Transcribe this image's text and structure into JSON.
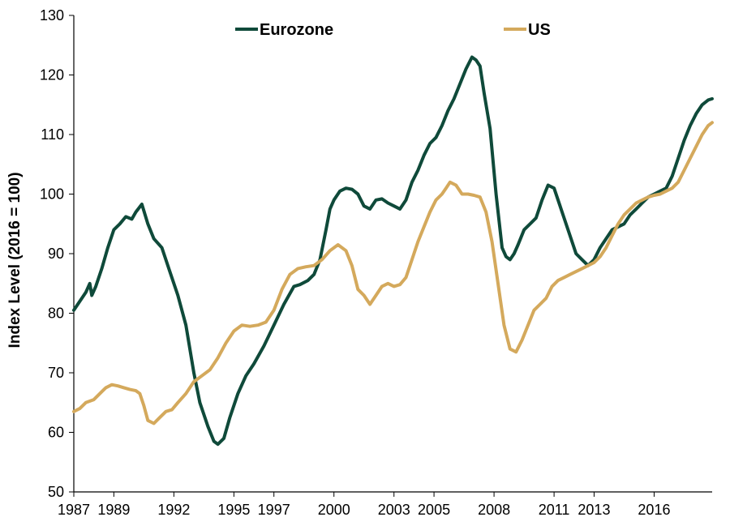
{
  "chart_data": {
    "type": "line",
    "title": "",
    "xlabel": "",
    "ylabel": "Index Level (2016 = 100)",
    "xlim": [
      1987.0,
      2018.9
    ],
    "ylim": [
      50,
      130
    ],
    "x_ticks": [
      1987,
      1989,
      1992,
      1995,
      1997,
      2000,
      2003,
      2005,
      2008,
      2011,
      2013,
      2016
    ],
    "y_ticks": [
      50,
      60,
      70,
      80,
      90,
      100,
      110,
      120,
      130
    ],
    "grid": false,
    "legend_position": "top",
    "series": [
      {
        "name": "Eurozone",
        "color": "#0f4a3a",
        "x": [
          1987.0,
          1987.3,
          1987.6,
          1987.8,
          1987.9,
          1988.1,
          1988.4,
          1988.7,
          1989.0,
          1989.3,
          1989.6,
          1989.9,
          1990.1,
          1990.4,
          1990.7,
          1991.0,
          1991.4,
          1991.8,
          1992.2,
          1992.6,
          1993.0,
          1993.3,
          1993.7,
          1994.0,
          1994.2,
          1994.5,
          1994.8,
          1995.2,
          1995.6,
          1996.0,
          1996.5,
          1997.0,
          1997.5,
          1998.0,
          1998.3,
          1998.7,
          1999.0,
          1999.3,
          1999.6,
          1999.8,
          2000.0,
          2000.3,
          2000.6,
          2000.9,
          2001.2,
          2001.5,
          2001.8,
          2002.1,
          2002.4,
          2002.7,
          2003.0,
          2003.3,
          2003.6,
          2003.9,
          2004.2,
          2004.5,
          2004.8,
          2005.1,
          2005.4,
          2005.7,
          2006.0,
          2006.3,
          2006.6,
          2006.9,
          2007.1,
          2007.3,
          2007.5,
          2007.8,
          2008.1,
          2008.4,
          2008.6,
          2008.8,
          2009.0,
          2009.2,
          2009.5,
          2009.8,
          2010.1,
          2010.4,
          2010.7,
          2011.0,
          2011.3,
          2011.5,
          2011.8,
          2012.1,
          2012.4,
          2012.7,
          2013.0,
          2013.3,
          2013.6,
          2013.9,
          2014.2,
          2014.5,
          2014.8,
          2015.1,
          2015.4,
          2015.7,
          2016.0,
          2016.3,
          2016.6,
          2016.9,
          2017.2,
          2017.5,
          2017.8,
          2018.1,
          2018.4,
          2018.7,
          2018.9
        ],
        "values": [
          80.5,
          82.0,
          83.5,
          85.0,
          83.0,
          84.5,
          87.5,
          91.0,
          94.0,
          95.0,
          96.2,
          95.8,
          97.0,
          98.3,
          95.0,
          92.5,
          91.0,
          87.0,
          83.0,
          78.0,
          70.0,
          65.0,
          61.0,
          58.5,
          58.0,
          59.0,
          62.5,
          66.5,
          69.5,
          71.5,
          74.5,
          78.0,
          81.5,
          84.5,
          84.8,
          85.5,
          86.5,
          89.0,
          94.0,
          97.5,
          99.0,
          100.5,
          101.0,
          100.8,
          100.0,
          98.0,
          97.5,
          99.0,
          99.2,
          98.5,
          98.0,
          97.5,
          99.0,
          102.0,
          104.0,
          106.5,
          108.5,
          109.5,
          111.5,
          114.0,
          116.0,
          118.5,
          121.0,
          123.0,
          122.5,
          121.5,
          117.0,
          111.0,
          100.0,
          91.0,
          89.5,
          89.0,
          90.0,
          91.5,
          94.0,
          95.0,
          96.0,
          99.0,
          101.5,
          101.0,
          98.0,
          96.0,
          93.0,
          90.0,
          89.0,
          88.0,
          89.0,
          91.0,
          92.5,
          94.0,
          94.5,
          95.0,
          96.5,
          97.5,
          98.5,
          99.5,
          100.0,
          100.5,
          101.0,
          103.0,
          106.0,
          109.0,
          111.5,
          113.5,
          115.0,
          115.8,
          116.0
        ]
      },
      {
        "name": "US",
        "color": "#d4a95c",
        "x": [
          1987.0,
          1987.3,
          1987.6,
          1988.0,
          1988.3,
          1988.6,
          1988.9,
          1989.2,
          1989.5,
          1989.8,
          1990.1,
          1990.3,
          1990.5,
          1990.7,
          1991.0,
          1991.3,
          1991.6,
          1991.9,
          1992.2,
          1992.6,
          1993.0,
          1993.4,
          1993.8,
          1994.2,
          1994.6,
          1995.0,
          1995.4,
          1995.8,
          1996.2,
          1996.6,
          1997.0,
          1997.4,
          1997.8,
          1998.2,
          1998.6,
          1999.0,
          1999.4,
          1999.8,
          2000.2,
          2000.6,
          2000.9,
          2001.2,
          2001.5,
          2001.8,
          2002.1,
          2002.4,
          2002.7,
          2003.0,
          2003.3,
          2003.6,
          2003.9,
          2004.2,
          2004.5,
          2004.8,
          2005.1,
          2005.4,
          2005.6,
          2005.8,
          2006.1,
          2006.4,
          2006.7,
          2007.0,
          2007.3,
          2007.6,
          2007.9,
          2008.2,
          2008.5,
          2008.8,
          2009.1,
          2009.4,
          2009.7,
          2010.0,
          2010.3,
          2010.6,
          2010.9,
          2011.2,
          2011.5,
          2011.8,
          2012.1,
          2012.4,
          2012.7,
          2013.0,
          2013.3,
          2013.6,
          2013.9,
          2014.2,
          2014.5,
          2014.8,
          2015.1,
          2015.4,
          2015.7,
          2016.0,
          2016.3,
          2016.6,
          2016.9,
          2017.2,
          2017.5,
          2017.8,
          2018.1,
          2018.4,
          2018.7,
          2018.9
        ],
        "values": [
          63.5,
          64.0,
          65.0,
          65.5,
          66.5,
          67.5,
          68.0,
          67.8,
          67.5,
          67.2,
          67.0,
          66.5,
          64.5,
          62.0,
          61.5,
          62.5,
          63.5,
          63.8,
          65.0,
          66.5,
          68.5,
          69.5,
          70.5,
          72.5,
          75.0,
          77.0,
          78.0,
          77.8,
          78.0,
          78.5,
          80.5,
          84.0,
          86.5,
          87.5,
          87.8,
          88.0,
          89.0,
          90.5,
          91.5,
          90.5,
          88.0,
          84.0,
          83.0,
          81.5,
          83.0,
          84.5,
          85.0,
          84.5,
          84.8,
          86.0,
          89.0,
          92.0,
          94.5,
          97.0,
          99.0,
          100.0,
          101.0,
          102.0,
          101.5,
          100.0,
          100.0,
          99.8,
          99.5,
          97.0,
          92.0,
          85.0,
          78.0,
          74.0,
          73.5,
          75.5,
          78.0,
          80.5,
          81.5,
          82.5,
          84.5,
          85.5,
          86.0,
          86.5,
          87.0,
          87.5,
          88.0,
          88.5,
          89.5,
          91.0,
          93.0,
          95.0,
          96.5,
          97.5,
          98.5,
          99.0,
          99.5,
          99.8,
          100.0,
          100.5,
          101.0,
          102.0,
          104.0,
          106.0,
          108.0,
          110.0,
          111.5,
          112.0
        ]
      }
    ]
  }
}
